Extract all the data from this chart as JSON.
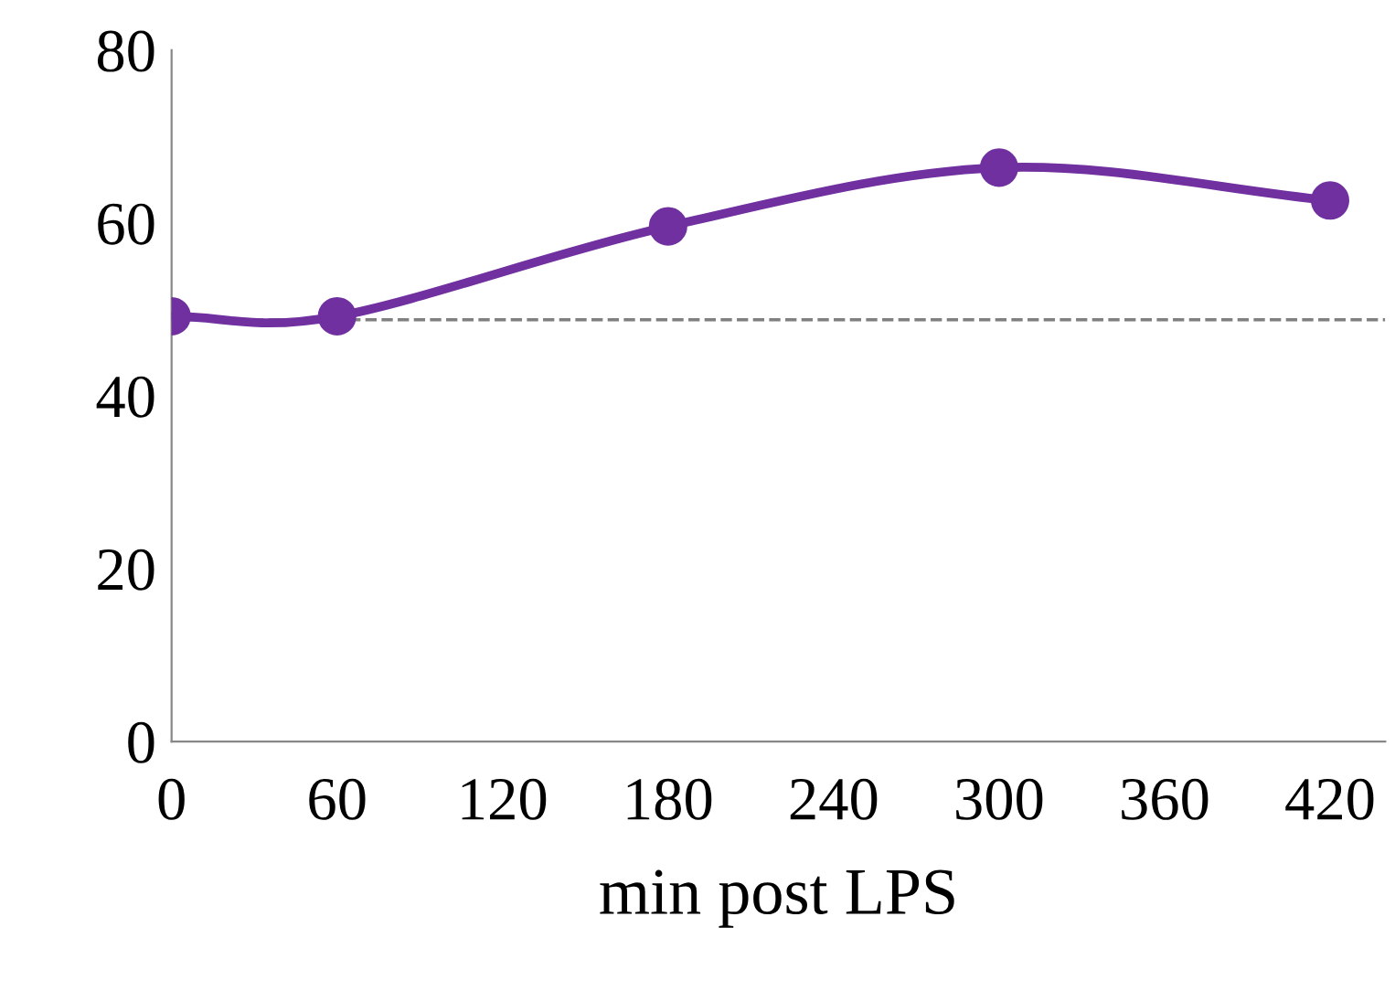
{
  "chart_data": {
    "type": "line",
    "xlabel": "min post LPS",
    "x": [
      0,
      60,
      180,
      300,
      420
    ],
    "series": [
      {
        "color": "#7030a0",
        "values": [
          49.2,
          49.2,
          59.6,
          66.4,
          62.6
        ]
      }
    ],
    "xlim": [
      0,
      440
    ],
    "xticks": [
      0,
      60,
      120,
      180,
      240,
      300,
      360,
      420
    ],
    "ylim": [
      0,
      80
    ],
    "yticks": [
      0,
      20,
      40,
      60,
      80
    ],
    "ref_lines": [
      {
        "axis": "y",
        "value": 48.8,
        "color": "#808080",
        "line_style": "dashed"
      }
    ],
    "marker": "circle",
    "line_style": "solid",
    "grid": false,
    "legend": false
  }
}
